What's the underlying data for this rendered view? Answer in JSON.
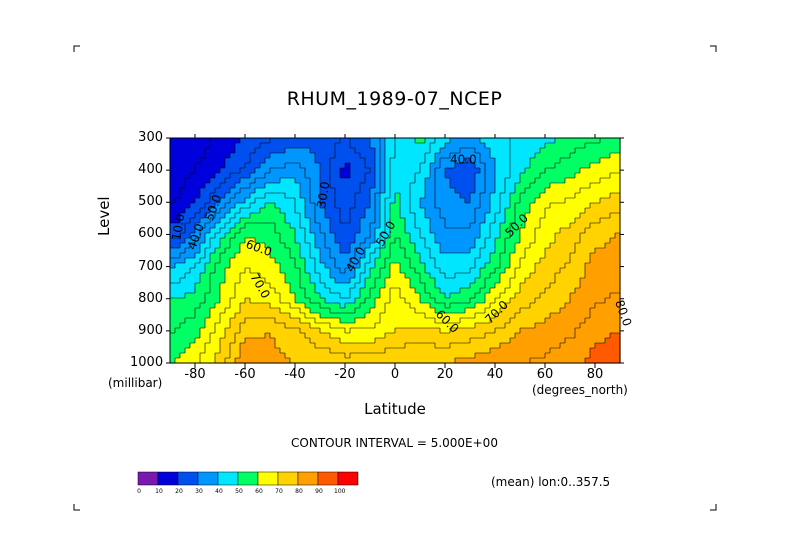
{
  "chart_data": {
    "type": "heatmap",
    "title": "RHUM_1989-07_NCEP",
    "xlabel": "Latitude",
    "ylabel": "Level",
    "x_units": "(degrees_north)",
    "y_units": "(millibar)",
    "xlim": [
      -90,
      90
    ],
    "ylim": [
      1000,
      300
    ],
    "x_ticks": [
      "-80",
      "-60",
      "-40",
      "-20",
      "0",
      "20",
      "40",
      "60",
      "80"
    ],
    "y_ticks": [
      "300",
      "400",
      "500",
      "600",
      "700",
      "800",
      "900",
      "1000"
    ],
    "contour_interval_text": "CONTOUR INTERVAL = 5.000E+00",
    "contour_labels": [
      "10.0",
      "40.0",
      "50.0",
      "60.0",
      "70.0",
      "30.0",
      "40.0",
      "50.0",
      "40.0",
      "50.0",
      "60.0",
      "70.0",
      "80.0"
    ],
    "colorbar": {
      "ticks": [
        "0",
        "10",
        "20",
        "30",
        "40",
        "50",
        "60",
        "70",
        "80",
        "90",
        "100"
      ],
      "colors": [
        "#7a18b0",
        "#0000dc",
        "#0050f0",
        "#0096ff",
        "#00e6ff",
        "#00ff64",
        "#ffff00",
        "#ffd200",
        "#ffa000",
        "#ff5a00",
        "#ff0000"
      ]
    },
    "mean_note": "(mean) lon:0..357.5",
    "levels": [
      300,
      400,
      500,
      600,
      700,
      800,
      900,
      1000
    ],
    "lat": [
      -88,
      -80,
      -70,
      -60,
      -50,
      -40,
      -30,
      -20,
      -10,
      0,
      10,
      20,
      30,
      40,
      50,
      60,
      70,
      80,
      88
    ],
    "values": [
      [
        10,
        12,
        16,
        20,
        24,
        27,
        28,
        25,
        30,
        45,
        52,
        42,
        38,
        44,
        46,
        48,
        52,
        54,
        56
      ],
      [
        12,
        15,
        20,
        26,
        35,
        38,
        30,
        18,
        25,
        48,
        45,
        30,
        25,
        40,
        48,
        55,
        58,
        62,
        64
      ],
      [
        15,
        20,
        30,
        42,
        50,
        45,
        30,
        22,
        30,
        52,
        40,
        32,
        30,
        42,
        56,
        64,
        66,
        70,
        72
      ],
      [
        22,
        32,
        48,
        60,
        58,
        50,
        36,
        25,
        35,
        55,
        45,
        36,
        36,
        48,
        60,
        68,
        72,
        78,
        80
      ],
      [
        40,
        45,
        58,
        65,
        62,
        56,
        42,
        32,
        48,
        62,
        52,
        42,
        44,
        54,
        66,
        72,
        76,
        82,
        82
      ],
      [
        50,
        52,
        60,
        70,
        68,
        60,
        50,
        45,
        56,
        68,
        60,
        50,
        54,
        64,
        72,
        76,
        80,
        84,
        86
      ],
      [
        55,
        58,
        68,
        78,
        80,
        76,
        70,
        65,
        66,
        70,
        72,
        70,
        72,
        75,
        80,
        82,
        84,
        88,
        90
      ],
      [
        60,
        64,
        72,
        85,
        82,
        80,
        80,
        78,
        78,
        80,
        80,
        80,
        82,
        84,
        85,
        86,
        88,
        92,
        94
      ]
    ]
  }
}
